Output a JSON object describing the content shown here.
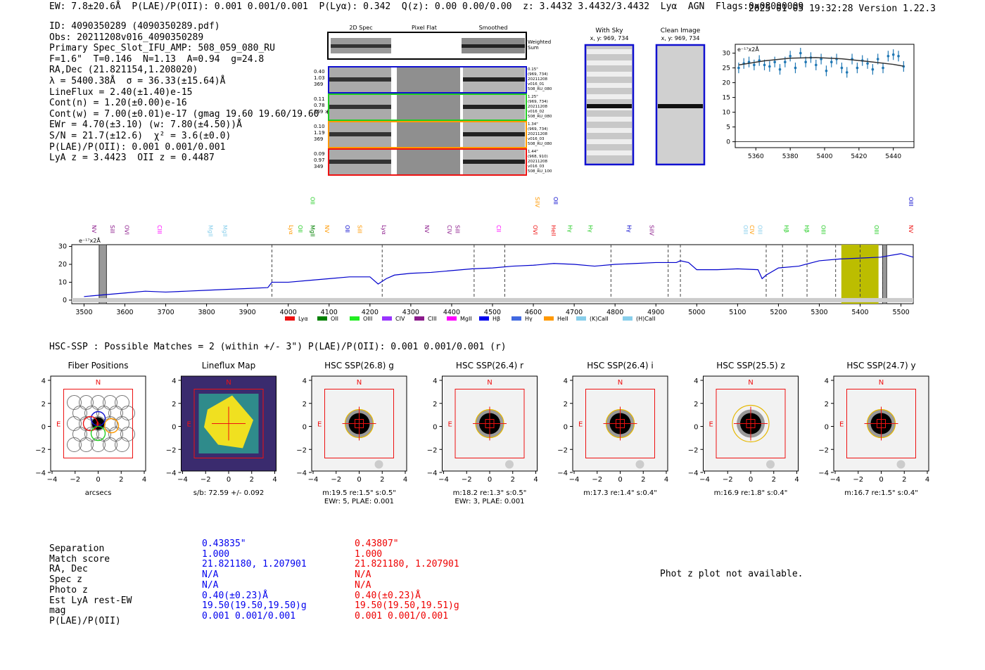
{
  "header": {
    "summary": "EW: 7.8±20.6Å  P(LAE)/P(OII): 0.001 0.001/0.001  P(Lyα): 0.342  Q(z): 0.00 0.00/0.00  z: 3.4432 3.4432/3.4432  Lyα  AGN  Flags:0x08000009",
    "timestamp": "2025-01-05 19:32:28",
    "version": "Version 1.22.3"
  },
  "info": [
    "ID: 4090350289 (4090350289.pdf)",
    "Obs: 20211208v016_4090350289",
    "Primary Spec_Slot_IFU_AMP: 508_059_080_RU",
    "F=1.6\"  T=0.146  N=1.13  A=0.94  g=24.8",
    "RA,Dec (21.821154,1.208020)",
    "λ = 5400.38Å  σ = 36.33(±15.64)Å",
    "LineFlux = 2.40(±1.40)e-15",
    "Cont(n) = 1.20(±0.00)e-16",
    "Cont(w) = 7.00(±0.01)e-17 (gmag 19.60 19.60/19.60 *)",
    "EWr = 4.70(±3.10) (w: 7.80(±4.50))Å",
    "S/N = 21.7(±12.6)  χ² = 3.6(±0.0)",
    "P(LAE)/P(OII): 0.001 0.001/0.001",
    "LyA z = 3.4423  OII z = 0.4487"
  ],
  "spec2d": {
    "col_titles": [
      "2D Spec",
      "Pixel Flat",
      "Smoothed"
    ],
    "weighted_label": "Weighted Sum",
    "rows": [
      {
        "left": [
          "0.40",
          "1.03",
          "369"
        ],
        "right": [
          "0.15\"",
          "(969, 734)",
          "20211208",
          "v016_01",
          "508_RU_080"
        ],
        "color": "#1010d0"
      },
      {
        "left": [
          "0.11",
          "0.78",
          "369"
        ],
        "right": [
          "1.25\"",
          "(969, 734)",
          "20211208",
          "v016_02",
          "508_RU_080"
        ],
        "color": "#22cc22"
      },
      {
        "left": [
          "0.10",
          "1.19",
          "369"
        ],
        "right": [
          "1.34\"",
          "(969, 734)",
          "20211208",
          "v016_03",
          "508_RU_080"
        ],
        "color": "#ff9900"
      },
      {
        "left": [
          "0.09",
          "0.97",
          "349"
        ],
        "right": [
          "1.44\"",
          "(968, 910)",
          "20211208",
          "v016_03",
          "508_RU_100"
        ],
        "color": "#ee1111"
      }
    ]
  },
  "sky_panels": [
    {
      "title": "With Sky",
      "sub": "x, y: 969, 734"
    },
    {
      "title": "Clean Image",
      "sub": "x, y: 969, 734"
    }
  ],
  "chart_data": [
    {
      "type": "scatter",
      "title": "",
      "ylabel_note": "e⁻¹⁷x2Å",
      "xlim": [
        5348,
        5452
      ],
      "ylim": [
        -2,
        33
      ],
      "xticks": [
        5360,
        5380,
        5400,
        5420,
        5440
      ],
      "yticks": [
        0,
        5,
        10,
        15,
        20,
        25,
        30
      ],
      "points": {
        "x": [
          5350,
          5353,
          5356,
          5359,
          5362,
          5365,
          5368,
          5371,
          5374,
          5377,
          5380,
          5383,
          5386,
          5389,
          5392,
          5395,
          5398,
          5401,
          5404,
          5407,
          5410,
          5413,
          5416,
          5419,
          5422,
          5425,
          5428,
          5431,
          5434,
          5437,
          5440,
          5443,
          5446
        ],
        "y": [
          25,
          26.5,
          27,
          26,
          27.5,
          26,
          25.5,
          27,
          24.5,
          27,
          29,
          25,
          30,
          27,
          28.5,
          26,
          28,
          24,
          27,
          28,
          25,
          23.5,
          28,
          25,
          27.5,
          26.5,
          24.5,
          28,
          25,
          29,
          29.5,
          29,
          25.5
        ]
      },
      "fit": {
        "x": [
          5350,
          5365,
          5380,
          5395,
          5410,
          5425,
          5440,
          5446
        ],
        "y": [
          26,
          27.4,
          28.3,
          28.5,
          28.1,
          27.2,
          26.2,
          25.6
        ]
      }
    },
    {
      "type": "line",
      "title": "",
      "ylabel_note": "e⁻¹⁷x2Å",
      "xlim": [
        3470,
        5530
      ],
      "ylim": [
        -2,
        31
      ],
      "xticks": [
        3500,
        3600,
        3700,
        3800,
        3900,
        4000,
        4100,
        4200,
        4300,
        4400,
        4500,
        4600,
        4700,
        4800,
        4900,
        5000,
        5100,
        5200,
        5300,
        5400,
        5500
      ],
      "yticks": [
        0,
        10,
        20,
        30
      ],
      "series": [
        {
          "name": "spectrum",
          "x": [
            3500,
            3550,
            3600,
            3650,
            3700,
            3750,
            3800,
            3850,
            3900,
            3950,
            3960,
            4000,
            4050,
            4100,
            4150,
            4200,
            4220,
            4240,
            4260,
            4300,
            4350,
            4400,
            4450,
            4500,
            4550,
            4600,
            4650,
            4700,
            4750,
            4800,
            4850,
            4900,
            4950,
            4960,
            4980,
            5000,
            5050,
            5100,
            5150,
            5160,
            5170,
            5200,
            5250,
            5300,
            5350,
            5400,
            5450,
            5500,
            5530
          ],
          "y": [
            2,
            3,
            4,
            5,
            4.5,
            5,
            5.5,
            6,
            6.5,
            7,
            10,
            10,
            11,
            12,
            13,
            13,
            9,
            12,
            14,
            15,
            15.5,
            16.5,
            17.5,
            18,
            19,
            19.5,
            20.5,
            20,
            19,
            20,
            20.5,
            21,
            21,
            22,
            21,
            17,
            17,
            17.5,
            17,
            12,
            14,
            18,
            19,
            22,
            23,
            23.5,
            24,
            26,
            24
          ]
        }
      ],
      "shaded": [
        {
          "x0": 3537,
          "x1": 3555,
          "color": "gray"
        },
        {
          "x0": 5354,
          "x1": 5445,
          "color": "olive"
        },
        {
          "x0": 5455,
          "x1": 5465,
          "color": "gray"
        }
      ],
      "dashed_lines": [
        3960,
        4230,
        4455,
        4530,
        4790,
        4930,
        4960,
        5170,
        5210,
        5270,
        5340,
        5400,
        5455
      ],
      "line_labels": [
        {
          "x": 3520,
          "t": "NV",
          "c": "#8b1a8b"
        },
        {
          "x": 3565,
          "t": "SiII",
          "c": "#8b1a8b"
        },
        {
          "x": 3600,
          "t": "OVI",
          "c": "#8b1a8b"
        },
        {
          "x": 3680,
          "t": "CIII",
          "c": "#ff00ff"
        },
        {
          "x": 3805,
          "t": "MgII",
          "c": "#87ceeb"
        },
        {
          "x": 3840,
          "t": "MgII",
          "c": "#87ceeb"
        },
        {
          "x": 4002,
          "t": "Lyα",
          "c": "#ff9900"
        },
        {
          "x": 4025,
          "t": "OII",
          "c": "#22cc22"
        },
        {
          "x": 4055,
          "t": "MgII",
          "c": "#008000"
        },
        {
          "x": 4090,
          "t": "NV",
          "c": "#ff9900"
        },
        {
          "x": 4140,
          "t": "OII",
          "c": "#0000cc"
        },
        {
          "x": 4170,
          "t": "SiII",
          "c": "#ff9900"
        },
        {
          "x": 4230,
          "t": "Lyα",
          "c": "#8b1a8b"
        },
        {
          "x": 4335,
          "t": "NV",
          "c": "#8b1a8b"
        },
        {
          "x": 4390,
          "t": "CIV",
          "c": "#8b1a8b"
        },
        {
          "x": 4410,
          "t": "SiII",
          "c": "#8b1a8b"
        },
        {
          "x": 4510,
          "t": "CII",
          "c": "#ff00ff"
        },
        {
          "x": 4600,
          "t": "OVI",
          "c": "#ee1111"
        },
        {
          "x": 4645,
          "t": "HeII",
          "c": "#ee1111"
        },
        {
          "x": 4685,
          "t": "Hγ",
          "c": "#22cc22"
        },
        {
          "x": 4735,
          "t": "Hγ",
          "c": "#22cc22"
        },
        {
          "x": 4830,
          "t": "Hγ",
          "c": "#0000cc"
        },
        {
          "x": 4885,
          "t": "SiIV",
          "c": "#8b1a8b"
        },
        {
          "x": 5115,
          "t": "OIII",
          "c": "#87ceeb"
        },
        {
          "x": 5130,
          "t": "CIV",
          "c": "#ff9900"
        },
        {
          "x": 5150,
          "t": "OIII",
          "c": "#87ceeb"
        },
        {
          "x": 5215,
          "t": "Hβ",
          "c": "#22cc22"
        },
        {
          "x": 5265,
          "t": "Hβ",
          "c": "#22cc22"
        },
        {
          "x": 5305,
          "t": "OIII",
          "c": "#22cc22"
        },
        {
          "x": 5435,
          "t": "OIII",
          "c": "#22cc22"
        },
        {
          "x": 5520,
          "t": "NV",
          "c": "#ee1111"
        }
      ],
      "upper_labels": [
        {
          "x": 4055,
          "t": "OII",
          "c": "#22cc22"
        },
        {
          "x": 4605,
          "t": "SiIV",
          "c": "#ff9900"
        },
        {
          "x": 4650,
          "t": "OII",
          "c": "#0000cc"
        },
        {
          "x": 5520,
          "t": "OIII",
          "c": "#0000cc"
        }
      ],
      "legend": [
        {
          "t": "Lyα",
          "c": "#ee1111"
        },
        {
          "t": "OII",
          "c": "#008000"
        },
        {
          "t": "OIII",
          "c": "#22ee22"
        },
        {
          "t": "CIV",
          "c": "#9933ff"
        },
        {
          "t": "CIII",
          "c": "#8b1a8b"
        },
        {
          "t": "MgII",
          "c": "#ff00ff"
        },
        {
          "t": "Hβ",
          "c": "#0000ee"
        },
        {
          "t": "Hγ",
          "c": "#4169e1"
        },
        {
          "t": "HeII",
          "c": "#ff9900"
        },
        {
          "t": "(K)CaII",
          "c": "#87ceeb"
        },
        {
          "t": "(H)CaII",
          "c": "#87ceeb"
        }
      ]
    }
  ],
  "hsc": {
    "title": "HSC-SSP : Possible Matches = 2 (within +/- 3\")  P(LAE)/P(OII): 0.001 0.001/0.001 (r)",
    "axis_ticks_x": [
      "−4",
      "−2",
      "0",
      "2",
      "4"
    ],
    "axis_ticks_y": [
      "4",
      "2",
      "0",
      "−2",
      "−4"
    ],
    "north": "N",
    "east": "E",
    "panels": [
      {
        "title": "Fiber Positions",
        "cap1": "arcsecs",
        "cap2": ""
      },
      {
        "title": "Lineflux Map",
        "cap1": "s/b: 72.59 +/- 0.092",
        "cap2": ""
      },
      {
        "title": "HSC SSP(26.8) g",
        "cap1": "m:19.5  re:1.5\"  s:0.5\"",
        "cap2": "EWr: 5, PLAE: 0.001"
      },
      {
        "title": "HSC SSP(26.4) r",
        "cap1": "m:18.2  re:1.3\"  s:0.5\"",
        "cap2": "EWr: 3, PLAE: 0.001"
      },
      {
        "title": "HSC SSP(26.4) i",
        "cap1": "m:17.3  re:1.4\"  s:0.4\"",
        "cap2": ""
      },
      {
        "title": "HSC SSP(25.5) z",
        "cap1": "m:16.9  re:1.8\"  s:0.4\"",
        "cap2": ""
      },
      {
        "title": "HSC SSP(24.7) y",
        "cap1": "m:16.7  re:1.5\"  s:0.4\"",
        "cap2": ""
      }
    ]
  },
  "match_table": {
    "labels": [
      "Separation",
      "Match score",
      "RA, Dec",
      "Spec z",
      "Photo z",
      "Est LyA rest-EW",
      "mag",
      "P(LAE)/P(OII)"
    ],
    "col1": [
      "0.43835\"",
      "1.000",
      "21.821180, 1.207901",
      "N/A",
      "N/A",
      "0.40(±0.23)Å",
      "19.50(19.50,19.50)g",
      "0.001 0.001/0.001"
    ],
    "col2": [
      "0.43807\"",
      "1.000",
      "21.821180, 1.207901",
      "N/A",
      "N/A",
      "0.40(±0.23)Å",
      "19.50(19.50,19.51)g",
      "0.001 0.001/0.001"
    ],
    "col1_color": "#0000ee",
    "col2_color": "#ee0000"
  },
  "photz_text": "Phot z plot not available."
}
